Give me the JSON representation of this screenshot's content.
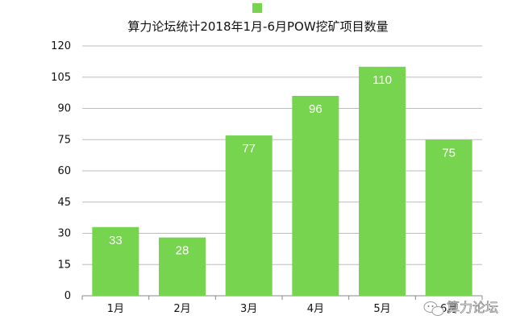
{
  "chart_data": {
    "type": "bar",
    "title": "算力论坛统计2018年1月-6月POW挖矿项目数量",
    "categories": [
      "1月",
      "2月",
      "3月",
      "4月",
      "5月",
      "6月"
    ],
    "values": [
      33,
      28,
      77,
      96,
      110,
      75
    ],
    "ylim": [
      0,
      120
    ],
    "yticks": [
      0,
      15,
      30,
      45,
      60,
      75,
      90,
      105,
      120
    ],
    "grid": true,
    "legend_position": "top-center",
    "bar_color": "#77d44f",
    "xlabel": "",
    "ylabel": ""
  },
  "watermark": {
    "text": "算力论坛",
    "icon": "wechat-icon"
  }
}
